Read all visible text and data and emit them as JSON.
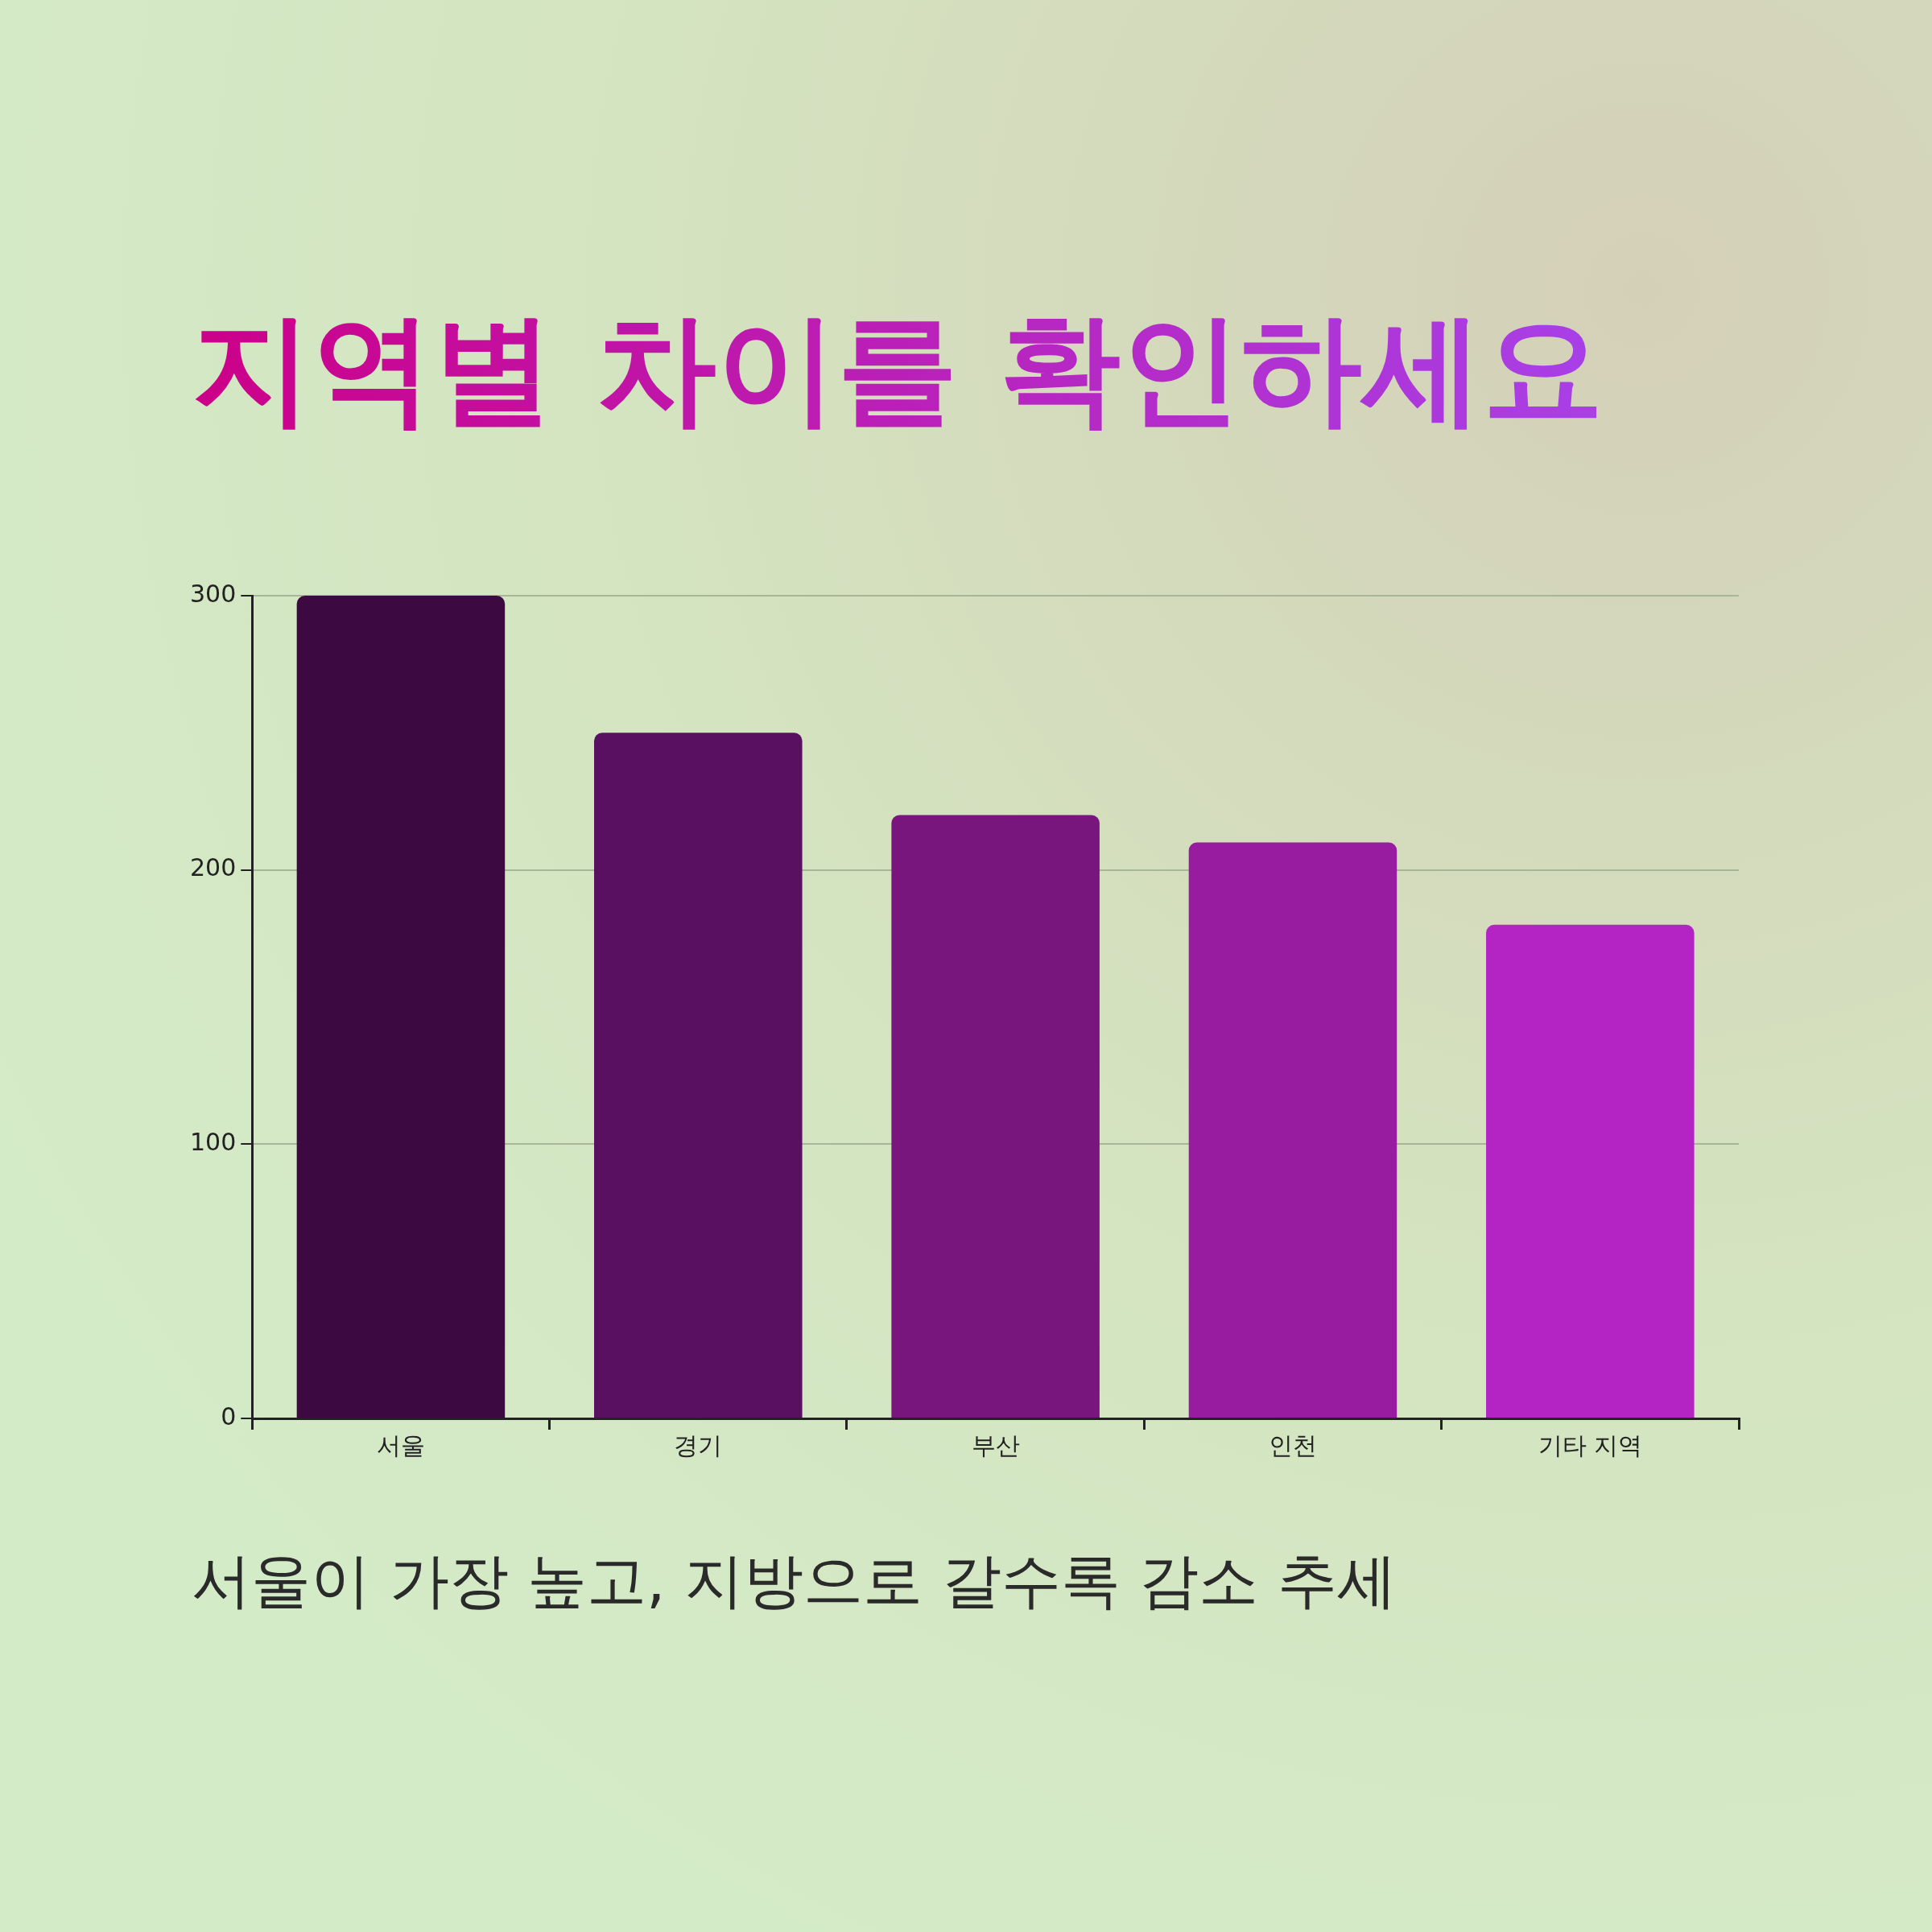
{
  "chart_data": {
    "type": "bar",
    "title": "지역별 차이를 확인하세요",
    "categories": [
      "서울",
      "경기",
      "부산",
      "인천",
      "기타 지역"
    ],
    "values": [
      300,
      250,
      220,
      210,
      180
    ],
    "colors": [
      "#3c0a40",
      "#5a1060",
      "#78167e",
      "#981ca0",
      "#b424c4"
    ],
    "ylim": [
      0,
      300
    ],
    "yticks": [
      0,
      100,
      200,
      300
    ],
    "grid": "y",
    "annotations": [
      "서울이 가장 높고, 지방으로 갈수록 감소 추세"
    ]
  }
}
